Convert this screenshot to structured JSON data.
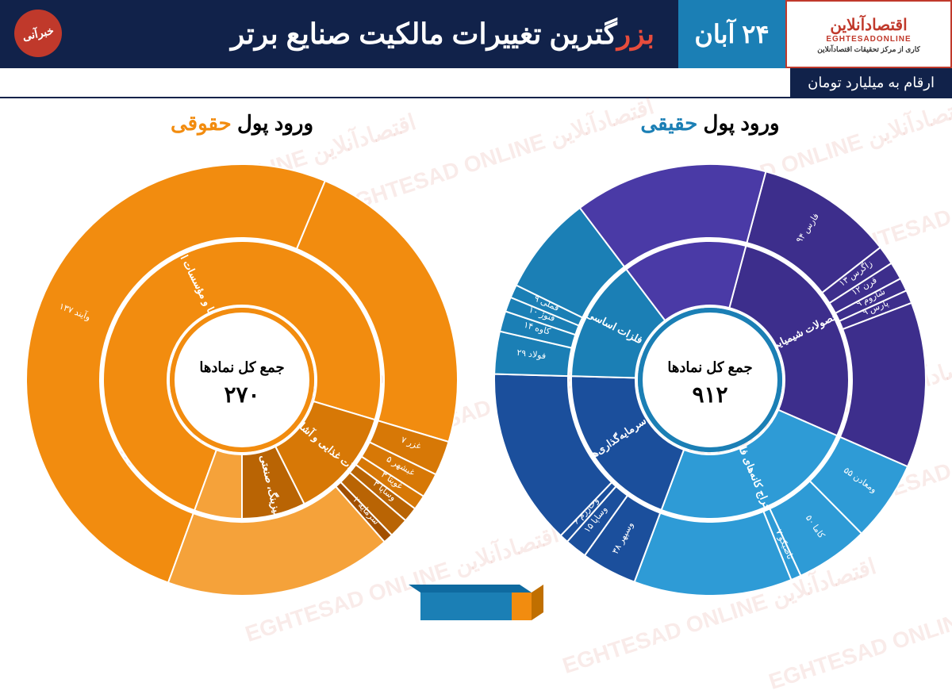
{
  "header": {
    "logo_main": "اقتصادآنلاین",
    "logo_sub": "EGHTESADONLINE",
    "logo_tag": "کاری از مرکز تحقیقات اقتصادآنلاین",
    "date": "۲۴ آبان",
    "title_pre": "بزر",
    "title_main": "گترین تغییرات مالکیت صنایع برتر",
    "badge": "خبرآنی",
    "badge_bg": "#c0392b"
  },
  "units": "ارقام به میلیارد تومان",
  "watermark": "اقتصادآنلاین  EGHTESAD ONLINE",
  "colors": {
    "header_bg": "#11224a",
    "date_bg": "#1b7fb5",
    "orange_title": "#f28c0f",
    "blue_title": "#1b7fb5"
  },
  "left_chart": {
    "title_pre": "ورود پول ",
    "title_hl": "حقوقی",
    "center_label": "جمع کل نمادها",
    "center_value": "۲۷۰",
    "center_ring": "#f28c0f",
    "inner": [
      {
        "label": "بانک‌ها و مؤسسات اعتباری",
        "value": 200,
        "color": "#f28c0f"
      },
      {
        "label": "محصولات غذایی و آشامیدنی",
        "value": 35,
        "color": "#d77806"
      },
      {
        "label": "لیزینگ، صنعتی",
        "value": 20,
        "color": "#b96404"
      },
      {
        "label": "",
        "value": 15,
        "color": "#f5a23a"
      }
    ],
    "outer": [
      {
        "label": "وآیند ۱۳۷",
        "value": 137,
        "color": "#f28c0f"
      },
      {
        "label": "",
        "value": 63,
        "color": "#f28c0f"
      },
      {
        "label": "غزر ۷",
        "value": 7,
        "color": "#d77806"
      },
      {
        "label": "غبشهر ۵",
        "value": 5,
        "color": "#d77806"
      },
      {
        "label": "غویتا ۳",
        "value": 3,
        "color": "#d77806"
      },
      {
        "label": "وساپا ۳",
        "value": 3,
        "color": "#b96404"
      },
      {
        "label": "",
        "value": 4,
        "color": "#b96404"
      },
      {
        "label": "سرمایه ۲",
        "value": 2,
        "color": "#a24f00"
      },
      {
        "label": "",
        "value": 46,
        "color": "#f5a23a"
      }
    ]
  },
  "right_chart": {
    "title_pre": "ورود پول ",
    "title_hl": "حقیقی",
    "center_label": "جمع کل نمادها",
    "center_value": "۹۱۲",
    "center_ring": "#1b7fb5",
    "inner": [
      {
        "label": "محصولات شیمیایی",
        "value": 250,
        "color": "#3d2e8c"
      },
      {
        "label": "استخراج کانه‌های فلزی",
        "value": 220,
        "color": "#2e9bd6"
      },
      {
        "label": "سرمایه‌گذاری‌ها",
        "value": 180,
        "color": "#1b4f9c"
      },
      {
        "label": "فلزات اساسی",
        "value": 130,
        "color": "#1b7fb5"
      },
      {
        "label": "",
        "value": 132,
        "color": "#4a3aa6"
      }
    ],
    "outer": [
      {
        "label": "فارس ۹۴",
        "value": 94,
        "color": "#3d2e8c"
      },
      {
        "label": "زاگرس ۱۳",
        "value": 13,
        "color": "#3d2e8c"
      },
      {
        "label": "قرن ۱۲",
        "value": 12,
        "color": "#3d2e8c"
      },
      {
        "label": "شاروم ۹",
        "value": 9,
        "color": "#3d2e8c"
      },
      {
        "label": "پارس ۹",
        "value": 9,
        "color": "#3d2e8c"
      },
      {
        "label": "",
        "value": 113,
        "color": "#3d2e8c"
      },
      {
        "label": "ومعادن ۵۵",
        "value": 55,
        "color": "#2e9bd6"
      },
      {
        "label": "کاما ۵۰",
        "value": 50,
        "color": "#2e9bd6"
      },
      {
        "label": "تاصیکو ۷",
        "value": 7,
        "color": "#2e9bd6"
      },
      {
        "label": "",
        "value": 108,
        "color": "#2e9bd6"
      },
      {
        "label": "وسپهر ۳۸",
        "value": 38,
        "color": "#1b4f9c"
      },
      {
        "label": "وساپا ۱۵",
        "value": 15,
        "color": "#1b4f9c"
      },
      {
        "label": "وخارزم ۶",
        "value": 6,
        "color": "#1b4f9c"
      },
      {
        "label": "",
        "value": 121,
        "color": "#1b4f9c"
      },
      {
        "label": "فولاد ۲۹",
        "value": 29,
        "color": "#1b7fb5"
      },
      {
        "label": "کاوه ۱۴",
        "value": 14,
        "color": "#1b7fb5"
      },
      {
        "label": "فنوژ ۱۰",
        "value": 10,
        "color": "#1b7fb5"
      },
      {
        "label": "فملی ۹",
        "value": 9,
        "color": "#1b7fb5"
      },
      {
        "label": "",
        "value": 68,
        "color": "#1b7fb5"
      },
      {
        "label": "",
        "value": 132,
        "color": "#4a3aa6"
      }
    ]
  },
  "legend": {
    "left_color": "#f28c0f",
    "right_color": "#1b7fb5"
  }
}
